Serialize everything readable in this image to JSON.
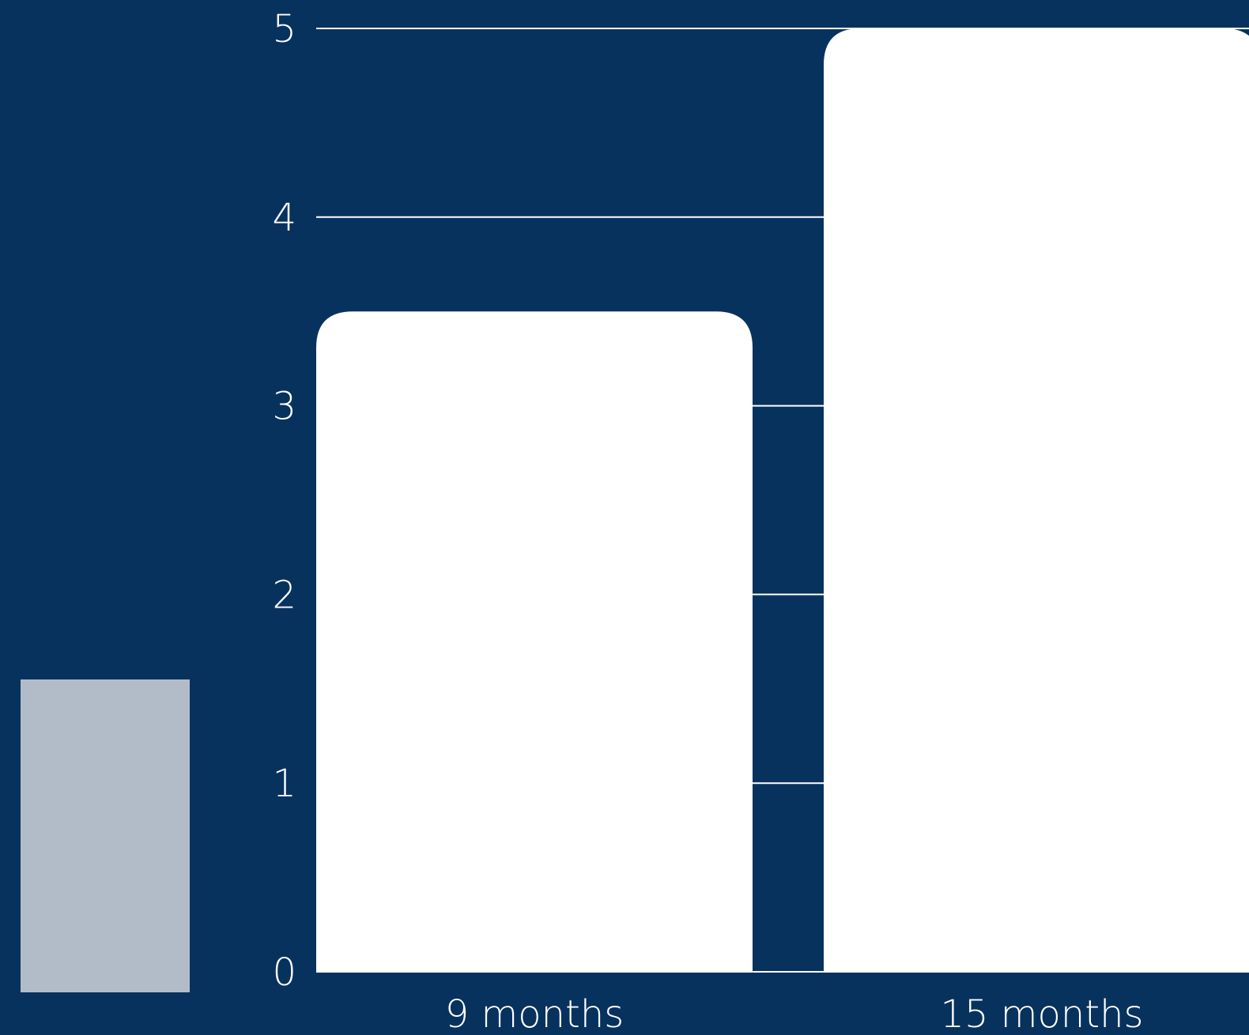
{
  "chart_data": {
    "type": "bar",
    "categories": [
      "9 months",
      "15 months"
    ],
    "values": [
      3.5,
      5
    ],
    "title": "",
    "xlabel": "",
    "ylabel": "",
    "ylim": [
      0,
      5
    ],
    "yticks": [
      "0",
      "1",
      "2",
      "3",
      "4",
      "5"
    ],
    "grid": true,
    "legend": "none"
  },
  "colors": {
    "background": "#08325E",
    "bar": "#FFFFFF",
    "grid": "#FFFFFF",
    "text": "#FFFFFF",
    "side_panel": "#B2BCC9"
  }
}
